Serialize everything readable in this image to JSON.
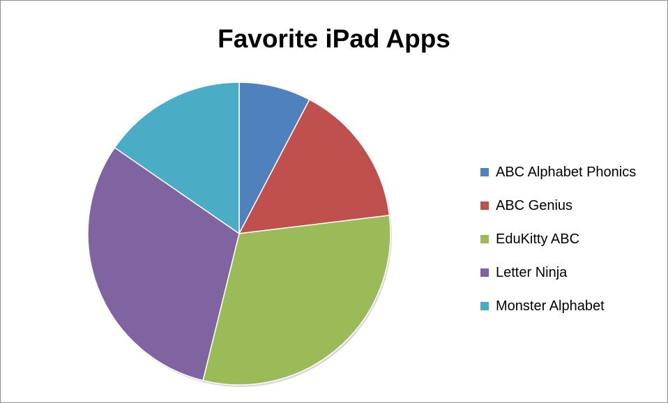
{
  "chart_data": {
    "type": "pie",
    "title": "Favorite iPad Apps",
    "legend_position": "right",
    "slices": [
      {
        "label": "ABC Alphabet Phonics",
        "value": 1,
        "color": "#4f81bd"
      },
      {
        "label": "ABC Genius",
        "value": 2,
        "color": "#c0504d"
      },
      {
        "label": "EduKitty ABC",
        "value": 4,
        "color": "#9bbb59"
      },
      {
        "label": "Letter Ninja",
        "value": 4,
        "color": "#8064a2"
      },
      {
        "label": "Monster Alphabet",
        "value": 2,
        "color": "#4bacc6"
      }
    ]
  }
}
